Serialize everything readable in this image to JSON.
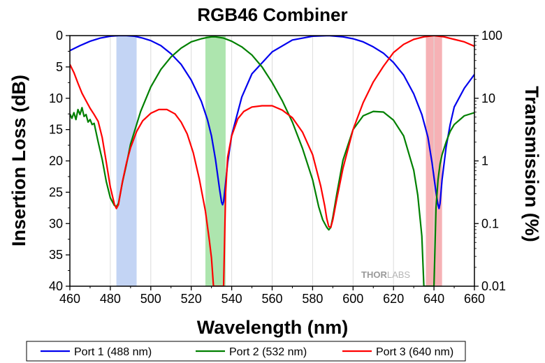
{
  "chart_data": {
    "type": "line",
    "title": "RGB46 Combiner",
    "xlabel": "Wavelength (nm)",
    "ylabel": "Insertion Loss (dB)",
    "y2label": "Transmission (%)",
    "xlim": [
      460,
      660
    ],
    "ylim": [
      0,
      40
    ],
    "y_inverted": true,
    "y2_scale": "log",
    "y2lim": [
      0.01,
      100
    ],
    "x_ticks": [
      "460",
      "480",
      "500",
      "520",
      "540",
      "560",
      "580",
      "600",
      "620",
      "640",
      "660"
    ],
    "y_ticks": [
      "0",
      "5",
      "10",
      "15",
      "20",
      "25",
      "30",
      "35",
      "40"
    ],
    "y2_ticks": [
      "100",
      "10",
      "1",
      "0.1",
      "0.01"
    ],
    "grid": "vertical",
    "legend_position": "bottom",
    "watermark": "THORLABS",
    "bands": [
      {
        "x_start": 483,
        "x_end": 493,
        "color": "#b9ccf2"
      },
      {
        "x_start": 527,
        "x_end": 537,
        "color": "#9fe0a0"
      },
      {
        "x_start": 636,
        "x_end": 644,
        "color": "#f5a3a8"
      }
    ],
    "series": [
      {
        "name": "Port 1 (488 nm)",
        "color": "#0000ee",
        "x": [
          460,
          465,
          470,
          475,
          480,
          484,
          488,
          492,
          496,
          500,
          505,
          510,
          515,
          520,
          525,
          528,
          530,
          532,
          534,
          535,
          535.5,
          536,
          537,
          538,
          540,
          545,
          550,
          560,
          570,
          580,
          588,
          595,
          600,
          605,
          610,
          615,
          620,
          625,
          630,
          634,
          637,
          639,
          641,
          642,
          642.5,
          643,
          644,
          646,
          648,
          650,
          655,
          660
        ],
        "y": [
          2.4,
          1.6,
          0.9,
          0.4,
          0.1,
          0.0,
          0.0,
          0.1,
          0.4,
          0.8,
          1.6,
          2.9,
          4.6,
          7.1,
          10.5,
          13.4,
          16.0,
          19.8,
          24.5,
          26.6,
          27.0,
          26.5,
          23.5,
          20.3,
          15.9,
          9.8,
          6.1,
          2.6,
          0.7,
          0.1,
          0.0,
          0.2,
          0.5,
          1.0,
          1.8,
          2.8,
          4.3,
          6.3,
          9.3,
          12.6,
          16.2,
          20.2,
          25.0,
          27.0,
          27.6,
          26.8,
          23.0,
          17.8,
          14.2,
          11.4,
          8.4,
          6.2
        ]
      },
      {
        "name": "Port 2 (532 nm)",
        "color": "#008000",
        "x": [
          460,
          461,
          462,
          463,
          464,
          465,
          466,
          467,
          468,
          469,
          470,
          471,
          472,
          474,
          476,
          478,
          480,
          482,
          483,
          484,
          486,
          488,
          490,
          495,
          500,
          505,
          510,
          515,
          520,
          525,
          528,
          530,
          532,
          534,
          536,
          540,
          545,
          550,
          555,
          560,
          565,
          570,
          575,
          580,
          583,
          585,
          587,
          588,
          589,
          590,
          592,
          595,
          600,
          605,
          610,
          615,
          620,
          625,
          630,
          632,
          634,
          635,
          636,
          637,
          638,
          639,
          640,
          641,
          642,
          643,
          644,
          646,
          648,
          650,
          655,
          660
        ],
        "y": [
          12.5,
          13.2,
          12.3,
          13.4,
          11.8,
          12.6,
          11.5,
          12.9,
          12.6,
          13.8,
          13.4,
          14.2,
          14.0,
          17.0,
          19.8,
          23.3,
          25.9,
          27.1,
          27.3,
          26.8,
          23.4,
          20.5,
          17.3,
          12.1,
          8.2,
          5.4,
          3.4,
          2.0,
          1.0,
          0.5,
          0.3,
          0.2,
          0.2,
          0.3,
          0.4,
          0.9,
          1.8,
          3.1,
          5.0,
          7.5,
          10.4,
          13.8,
          18.0,
          23.0,
          27.3,
          29.4,
          30.6,
          31.0,
          30.6,
          29.0,
          25.2,
          19.9,
          15.0,
          12.8,
          12.1,
          12.2,
          13.5,
          16.0,
          21.5,
          25.5,
          32.0,
          40.0,
          40.0,
          40.0,
          40.0,
          40.0,
          40.0,
          27.5,
          23.0,
          20.5,
          19.0,
          17.0,
          15.3,
          14.2,
          12.8,
          12.3
        ]
      },
      {
        "name": "Port 3 (640 nm)",
        "color": "#ff0000",
        "x": [
          460,
          462,
          464,
          466,
          468,
          470,
          472,
          474,
          476,
          478,
          480,
          482,
          483,
          484,
          486,
          488,
          490,
          493,
          496,
          500,
          504,
          508,
          512,
          515,
          518,
          521,
          524,
          527,
          529,
          530,
          531,
          532,
          533,
          534,
          535,
          536,
          537,
          538,
          540,
          543,
          546,
          550,
          555,
          560,
          565,
          570,
          575,
          580,
          584,
          586,
          587,
          588,
          589,
          590,
          592,
          595,
          600,
          605,
          610,
          615,
          620,
          625,
          630,
          635,
          640,
          645,
          650,
          655,
          660
        ],
        "y": [
          4.6,
          5.9,
          7.6,
          9.2,
          10.4,
          11.6,
          12.6,
          13.7,
          16.3,
          20.2,
          24.2,
          26.9,
          27.6,
          27.0,
          23.3,
          20.3,
          17.9,
          15.3,
          13.6,
          12.4,
          11.8,
          11.8,
          12.5,
          13.8,
          15.7,
          18.7,
          22.9,
          28.0,
          32.8,
          35.5,
          40.0,
          40.0,
          40.0,
          40.0,
          40.0,
          40.0,
          25.0,
          19.4,
          16.0,
          13.3,
          12.1,
          11.4,
          11.2,
          11.2,
          11.9,
          13.1,
          15.4,
          19.0,
          24.0,
          27.2,
          29.2,
          30.5,
          30.6,
          29.4,
          26.0,
          21.2,
          15.0,
          10.7,
          7.4,
          4.9,
          2.7,
          1.4,
          0.6,
          0.2,
          0.0,
          0.2,
          0.6,
          1.0,
          1.7
        ]
      }
    ]
  }
}
